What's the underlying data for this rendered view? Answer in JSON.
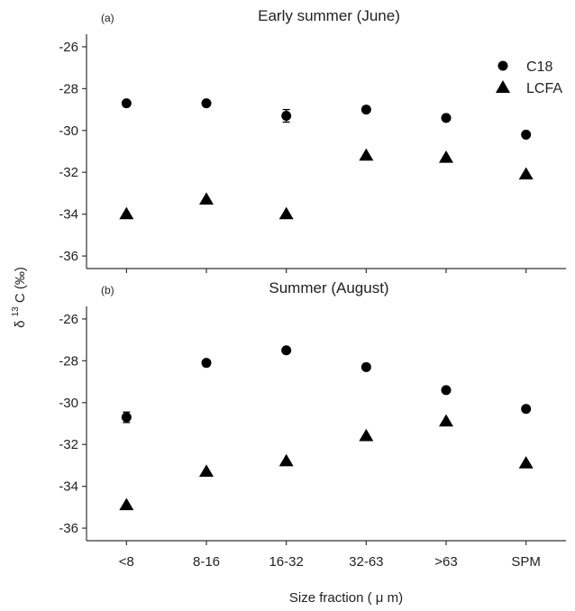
{
  "chart_data": [
    {
      "type": "scatter",
      "panel_label": "(a)",
      "title": "Early summer (June)",
      "categories": [
        "<8",
        "8-16",
        "16-32",
        "32-63",
        ">63",
        "SPM"
      ],
      "ylim": [
        -36.6,
        -25.4
      ],
      "yticks": [
        -36,
        -34,
        -32,
        -30,
        -28,
        -26
      ],
      "ytick_labels": [
        "-36",
        "-34",
        "-32",
        "-30",
        "-28",
        "-26"
      ],
      "series": [
        {
          "name": "C18",
          "marker": "circle",
          "values": [
            -28.7,
            -28.7,
            -29.3,
            -29.0,
            -29.4,
            -30.2
          ],
          "errors": [
            0,
            0,
            0.3,
            0,
            0,
            0
          ]
        },
        {
          "name": "LCFA",
          "marker": "triangle",
          "values": [
            -34.0,
            -33.3,
            -34.0,
            -31.2,
            -31.3,
            -32.1
          ],
          "errors": [
            0,
            0,
            0,
            0,
            0,
            0
          ]
        }
      ],
      "legend": "top-right"
    },
    {
      "type": "scatter",
      "panel_label": "(b)",
      "title": "Summer (August)",
      "categories": [
        "<8",
        "8-16",
        "16-32",
        "32-63",
        ">63",
        "SPM"
      ],
      "ylim": [
        -36.6,
        -25.4
      ],
      "yticks": [
        -36,
        -34,
        -32,
        -30,
        -28,
        -26
      ],
      "ytick_labels": [
        "-36",
        "-34",
        "-32",
        "-30",
        "-28",
        "-26"
      ],
      "series": [
        {
          "name": "C18",
          "marker": "circle",
          "values": [
            -30.7,
            -28.1,
            -27.5,
            -28.3,
            -29.4,
            -30.3
          ],
          "errors": [
            0.25,
            0,
            0,
            0,
            0,
            0
          ]
        },
        {
          "name": "LCFA",
          "marker": "triangle",
          "values": [
            -34.9,
            -33.3,
            -32.8,
            -31.6,
            -30.9,
            -32.9
          ],
          "errors": [
            0,
            0,
            0,
            0,
            0,
            0
          ]
        }
      ]
    }
  ],
  "shared": {
    "ylabel_main": "δ",
    "ylabel_sup": "13",
    "ylabel_rest": "C (‰)",
    "xlabel_main": "Size fraction ( ",
    "xlabel_mu": "μ",
    "xlabel_rest": "m)"
  },
  "colors": {
    "marker": "#000000",
    "axis": "#333333",
    "text": "#222222"
  }
}
